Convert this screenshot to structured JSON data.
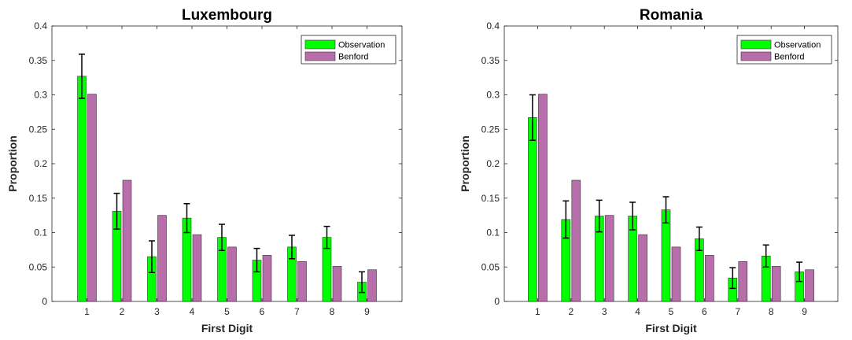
{
  "chart_data": [
    {
      "type": "bar",
      "title": "Luxembourg",
      "xlabel": "First Digit",
      "ylabel": "Proportion",
      "categories": [
        "1",
        "2",
        "3",
        "4",
        "5",
        "6",
        "7",
        "8",
        "9"
      ],
      "ylim": [
        0,
        0.4
      ],
      "yticks": [
        "0",
        "0.05",
        "0.1",
        "0.15",
        "0.2",
        "0.25",
        "0.3",
        "0.35",
        "0.4"
      ],
      "grid": false,
      "legend_position": "top-right",
      "series": [
        {
          "name": "Observation",
          "color": "#00ff00",
          "values": [
            0.327,
            0.131,
            0.065,
            0.121,
            0.093,
            0.06,
            0.079,
            0.093,
            0.028
          ],
          "error": [
            0.032,
            0.026,
            0.023,
            0.021,
            0.019,
            0.017,
            0.017,
            0.016,
            0.015
          ]
        },
        {
          "name": "Benford",
          "color": "#b86eaa",
          "values": [
            0.301,
            0.176,
            0.125,
            0.097,
            0.079,
            0.067,
            0.058,
            0.051,
            0.046
          ]
        }
      ]
    },
    {
      "type": "bar",
      "title": "Romania",
      "xlabel": "First Digit",
      "ylabel": "Proportion",
      "categories": [
        "1",
        "2",
        "3",
        "4",
        "5",
        "6",
        "7",
        "8",
        "9"
      ],
      "ylim": [
        0,
        0.4
      ],
      "yticks": [
        "0",
        "0.05",
        "0.1",
        "0.15",
        "0.2",
        "0.25",
        "0.3",
        "0.35",
        "0.4"
      ],
      "grid": false,
      "legend_position": "top-right",
      "series": [
        {
          "name": "Observation",
          "color": "#00ff00",
          "values": [
            0.267,
            0.119,
            0.124,
            0.124,
            0.133,
            0.091,
            0.034,
            0.066,
            0.043
          ],
          "error": [
            0.033,
            0.027,
            0.023,
            0.02,
            0.019,
            0.017,
            0.015,
            0.016,
            0.014
          ]
        },
        {
          "name": "Benford",
          "color": "#b86eaa",
          "values": [
            0.301,
            0.176,
            0.125,
            0.097,
            0.079,
            0.067,
            0.058,
            0.051,
            0.046
          ]
        }
      ]
    }
  ]
}
